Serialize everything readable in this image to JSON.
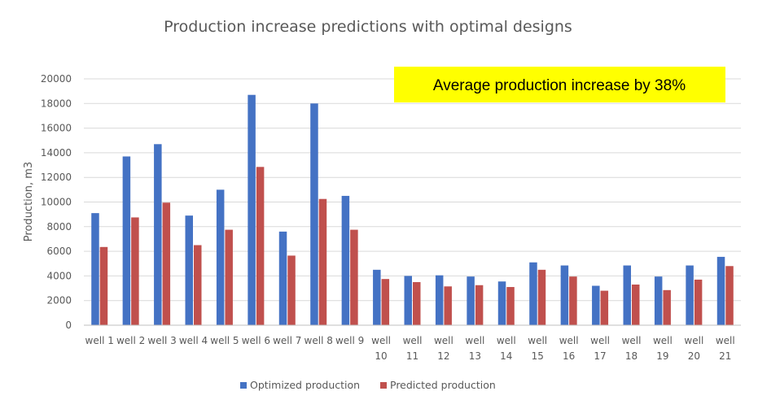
{
  "chart_data": {
    "type": "bar",
    "title": "Production increase predictions with optimal designs",
    "xlabel": "",
    "ylabel": "Production, m3",
    "ylim": [
      0,
      20000
    ],
    "yticks": [
      "0",
      "2000",
      "4000",
      "6000",
      "8000",
      "10000",
      "12000",
      "14000",
      "16000",
      "18000",
      "20000"
    ],
    "grid": true,
    "legend_position": "bottom",
    "categories": [
      [
        "well 1"
      ],
      [
        "well 2"
      ],
      [
        "well 3"
      ],
      [
        "well 4"
      ],
      [
        "well 5"
      ],
      [
        "well 6"
      ],
      [
        "well 7"
      ],
      [
        "well 8"
      ],
      [
        "well 9"
      ],
      [
        "well",
        "10"
      ],
      [
        "well",
        "11"
      ],
      [
        "well",
        "12"
      ],
      [
        "well",
        "13"
      ],
      [
        "well",
        "14"
      ],
      [
        "well",
        "15"
      ],
      [
        "well",
        "16"
      ],
      [
        "well",
        "17"
      ],
      [
        "well",
        "18"
      ],
      [
        "well",
        "19"
      ],
      [
        "well",
        "20"
      ],
      [
        "well",
        "21"
      ]
    ],
    "series": [
      {
        "name": "Optimized production",
        "color": "#4472C4",
        "values": [
          9100,
          13700,
          14700,
          8900,
          11000,
          18700,
          7600,
          18000,
          10500,
          4500,
          4000,
          4050,
          3950,
          3550,
          5100,
          4850,
          3200,
          4850,
          3950,
          4850,
          5550
        ]
      },
      {
        "name": "Predicted production",
        "color": "#C0504D",
        "values": [
          6350,
          8750,
          9950,
          6500,
          7750,
          12850,
          5650,
          10250,
          7750,
          3750,
          3500,
          3150,
          3250,
          3100,
          4500,
          3950,
          2800,
          3300,
          2850,
          3700,
          4800
        ]
      }
    ],
    "annotation": {
      "text": "Average production increase by 38%",
      "background": "#FFFF00"
    }
  }
}
